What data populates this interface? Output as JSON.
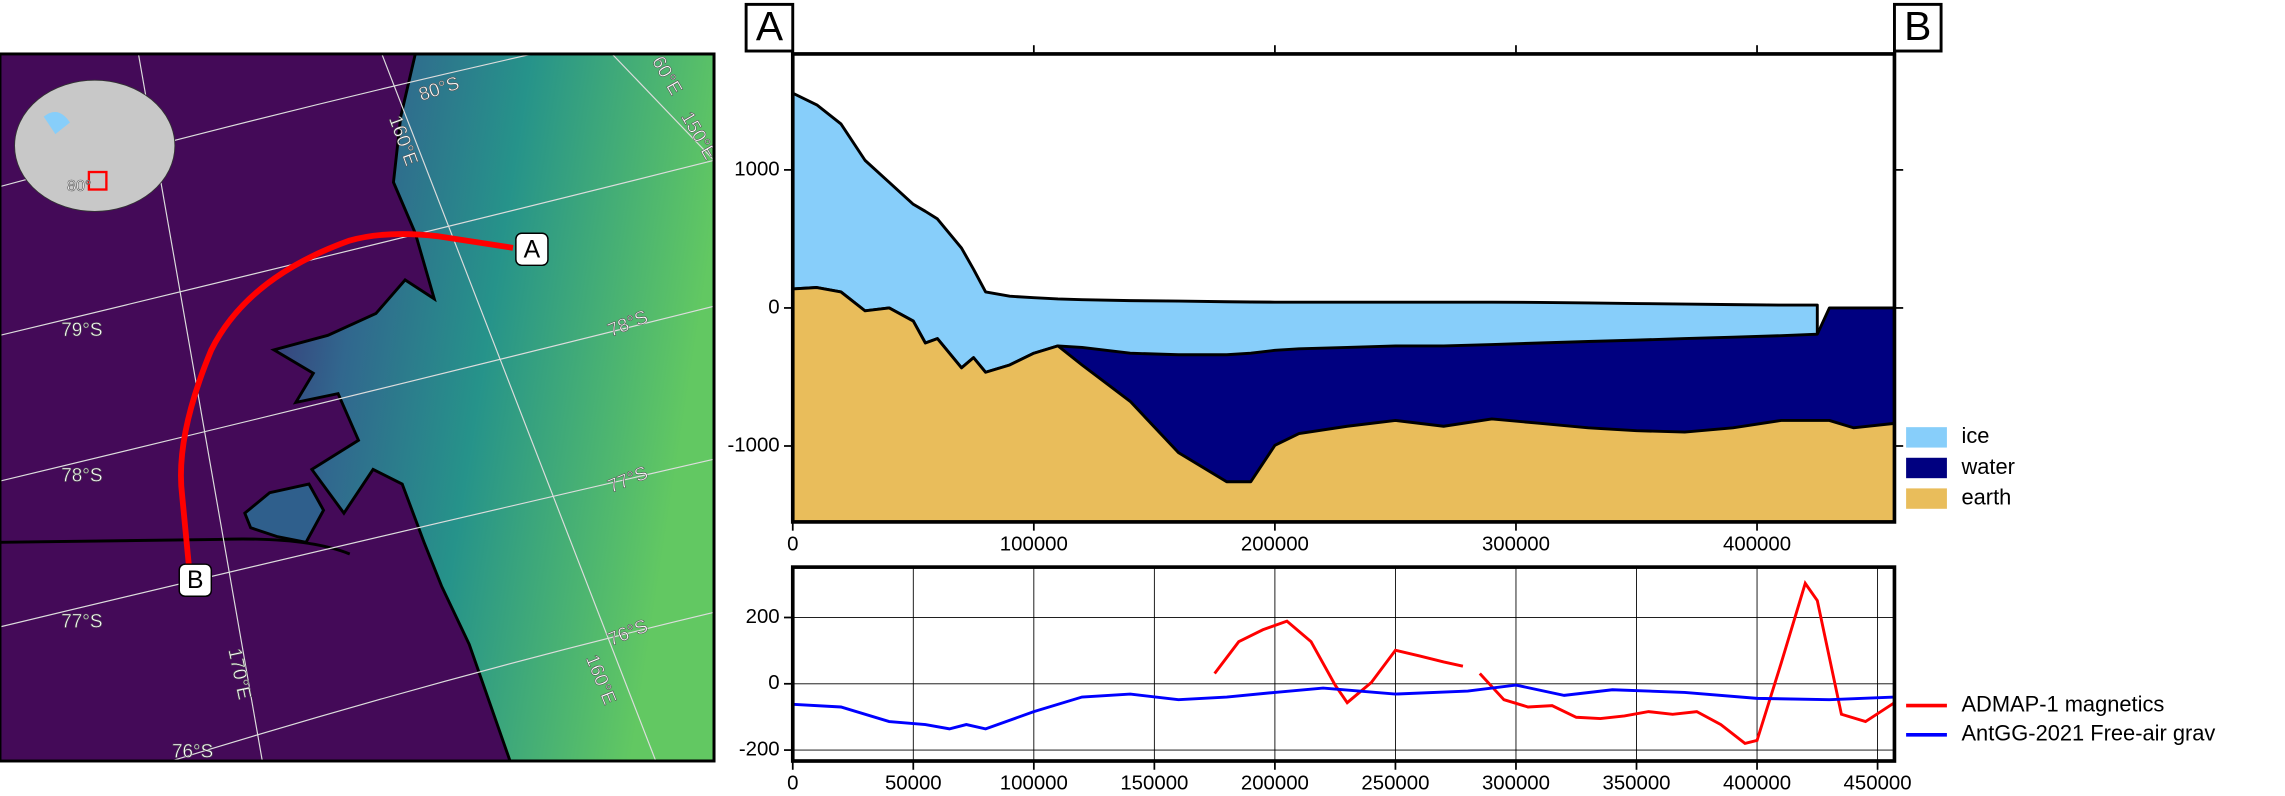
{
  "chart_data": [
    {
      "type": "map",
      "graticule_labels": [
        "80°S",
        "160°E",
        "60°E",
        "150°E",
        "79°S",
        "78°S",
        "78°S",
        "77°S",
        "77°S",
        "76°S",
        "76°S",
        "170°E",
        "160°E"
      ],
      "inset_label": "80°",
      "points": [
        "A",
        "B"
      ]
    },
    {
      "type": "area",
      "annotations": [
        "A",
        "B"
      ],
      "x": [
        0,
        10000,
        20000,
        30000,
        40000,
        50000,
        55000,
        60000,
        70000,
        75000,
        80000,
        90000,
        100000,
        110000,
        120000,
        140000,
        160000,
        180000,
        190000,
        200000,
        210000,
        230000,
        250000,
        270000,
        290000,
        310000,
        330000,
        350000,
        370000,
        390000,
        410000,
        425000,
        430000,
        440000,
        457000
      ],
      "series": [
        {
          "name": "ice",
          "color": "#87cefa",
          "values": [
            1556,
            1471,
            1333,
            1069,
            910,
            751,
            700,
            645,
            434,
            280,
            116,
            85,
            74,
            65,
            60,
            53,
            50,
            45,
            43,
            42,
            42,
            42,
            42,
            42,
            42,
            40,
            36,
            32,
            28,
            24,
            21,
            21,
            null,
            null,
            null
          ]
        },
        {
          "name": "water",
          "color": "#000080",
          "values": [
            138,
            148,
            116,
            -21,
            0,
            -95,
            -254,
            -222,
            -434,
            -360,
            -466,
            -413,
            -328,
            -275,
            -286,
            -328,
            -339,
            -339,
            -328,
            -307,
            -296,
            -286,
            -275,
            -275,
            -265,
            -254,
            -243,
            -233,
            -222,
            -212,
            -201,
            -190,
            0,
            0,
            0
          ]
        },
        {
          "name": "earth",
          "color": "#e9bd5b",
          "values": [
            138,
            148,
            116,
            -21,
            0,
            -95,
            -254,
            -222,
            -434,
            -360,
            -466,
            -413,
            -328,
            -275,
            -413,
            -677,
            -1048,
            -1259,
            -1259,
            -995,
            -910,
            -857,
            -815,
            -857,
            -804,
            -836,
            -868,
            -889,
            -899,
            -868,
            -815,
            -815,
            -815,
            -868,
            -836
          ]
        }
      ],
      "xlim": [
        0,
        457000
      ],
      "ylim": [
        -1550,
        1840
      ],
      "xticks": [
        0,
        100000,
        200000,
        300000,
        400000
      ],
      "yticks": [
        1000,
        0,
        -1000
      ]
    },
    {
      "type": "line",
      "series": [
        {
          "name": "ADMAP-1 magnetics",
          "color": "#ff0000",
          "x": [
            175000,
            185000,
            195000,
            205000,
            215000,
            225000,
            230000,
            240000,
            250000,
            260000,
            270000,
            278000,
            282000,
            285000,
            295000,
            305000,
            315000,
            325000,
            335000,
            345000,
            355000,
            365000,
            375000,
            385000,
            395000,
            400000,
            410000,
            420000,
            425000,
            435000,
            445000,
            457000
          ],
          "values": [
            31,
            127,
            163,
            189,
            127,
            -4,
            -57,
            4,
            101,
            84,
            66,
            53,
            null,
            31,
            -48,
            -70,
            -66,
            -101,
            -105,
            -97,
            -84,
            -92,
            -84,
            -123,
            -180,
            -171,
            62,
            303,
            251,
            -92,
            -114,
            -57
          ]
        },
        {
          "name": "AntGG-2021 Free-air grav",
          "color": "#0000ff",
          "x": [
            0,
            20000,
            40000,
            55000,
            65000,
            72000,
            80000,
            100000,
            120000,
            140000,
            160000,
            180000,
            200000,
            220000,
            250000,
            280000,
            300000,
            320000,
            340000,
            370000,
            400000,
            430000,
            457000
          ],
          "values": [
            -62,
            -70,
            -114,
            -123,
            -136,
            -123,
            -136,
            -84,
            -40,
            -31,
            -48,
            -40,
            -26,
            -13,
            -31,
            -22,
            -4,
            -35,
            -18,
            -26,
            -44,
            -48,
            -40
          ]
        }
      ],
      "xlim": [
        0,
        457000
      ],
      "ylim": [
        -233,
        352
      ],
      "xticks": [
        0,
        50000,
        100000,
        150000,
        200000,
        250000,
        300000,
        350000,
        400000,
        450000
      ],
      "yticks": [
        200,
        0,
        -200
      ],
      "grid": true
    }
  ]
}
